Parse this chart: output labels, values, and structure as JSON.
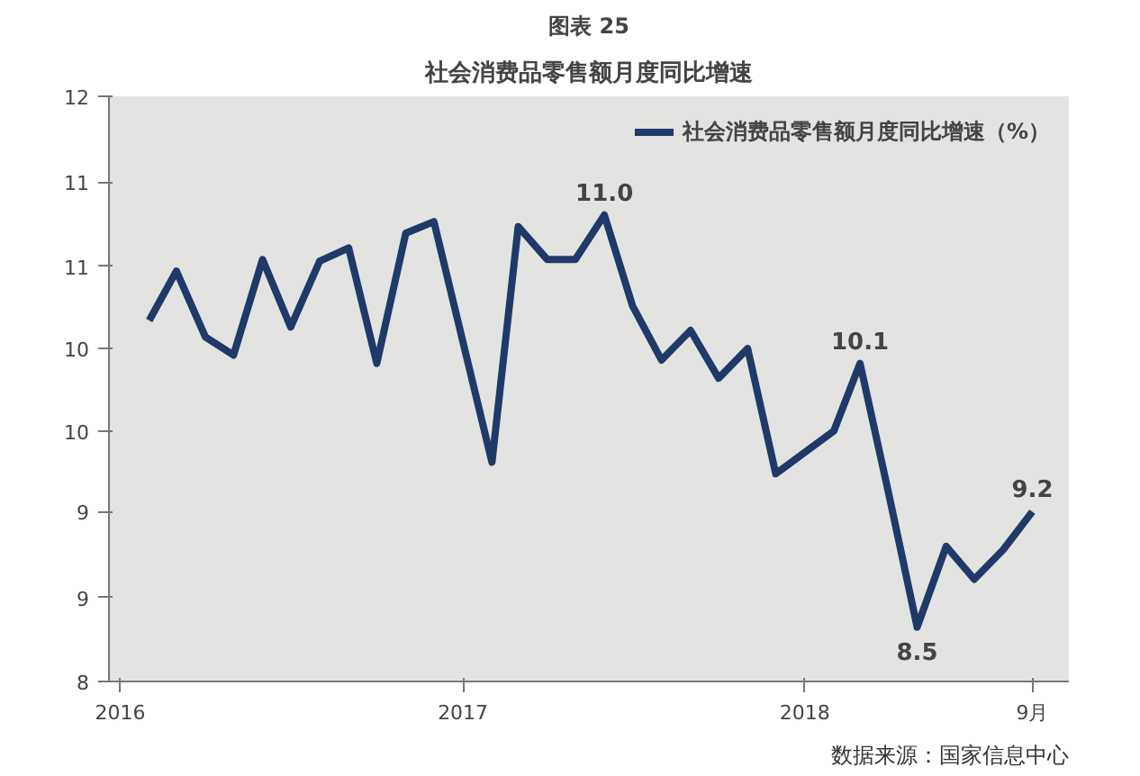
{
  "chart_data": {
    "type": "line",
    "title": "图表 25",
    "subtitle": "社会消费品零售额月度同比增速",
    "x": [
      "2016-02",
      "2016-03",
      "2016-04",
      "2016-05",
      "2016-06",
      "2016-07",
      "2016-08",
      "2016-09",
      "2016-10",
      "2016-11",
      "2016-12",
      "2017-02",
      "2017-03",
      "2017-04",
      "2017-05",
      "2017-06",
      "2017-07",
      "2017-08",
      "2017-09",
      "2017-10",
      "2017-11",
      "2017-12",
      "2018-02",
      "2018-03",
      "2018-04",
      "2018-05",
      "2018-06",
      "2018-07",
      "2018-08",
      "2018-09"
    ],
    "series": [
      {
        "name": "社会消费品零售额月度同比增速（%）",
        "color": "#1f3a68",
        "values": [
          10.36,
          10.66,
          10.26,
          10.15,
          10.73,
          10.32,
          10.72,
          10.8,
          10.1,
          10.89,
          10.96,
          9.5,
          10.93,
          10.73,
          10.73,
          11.0,
          10.45,
          10.12,
          10.3,
          10.01,
          10.19,
          9.43,
          9.69,
          10.1,
          9.3,
          8.5,
          8.99,
          8.79,
          8.97,
          9.2
        ],
        "value_labels": [
          null,
          null,
          null,
          null,
          null,
          null,
          null,
          null,
          null,
          null,
          null,
          null,
          null,
          null,
          null,
          "11.0",
          null,
          null,
          null,
          null,
          null,
          null,
          null,
          "10.1",
          null,
          "8.5",
          null,
          null,
          null,
          "9.2"
        ]
      }
    ],
    "xlim": [
      "2015-12-20",
      "2018-10-10"
    ],
    "xticks": [
      {
        "value": "2016-01",
        "label": "2016"
      },
      {
        "value": "2017-01",
        "label": "2017"
      },
      {
        "value": "2018-01",
        "label": "2018"
      },
      {
        "value": "2018-09",
        "label": "9月"
      }
    ],
    "ylim": [
      8.17,
      11.72
    ],
    "yticks": [
      {
        "value": 8.17,
        "label": "8"
      },
      {
        "value": 8.68,
        "label": "9"
      },
      {
        "value": 9.2,
        "label": "9"
      },
      {
        "value": 9.69,
        "label": "10"
      },
      {
        "value": 10.19,
        "label": "10"
      },
      {
        "value": 10.69,
        "label": "11"
      },
      {
        "value": 11.2,
        "label": "11"
      },
      {
        "value": 11.72,
        "label": "12"
      }
    ],
    "legend": "top right",
    "marker": "none",
    "line_style": "solid",
    "annotations": [
      "数据来源：国家信息中心"
    ]
  }
}
